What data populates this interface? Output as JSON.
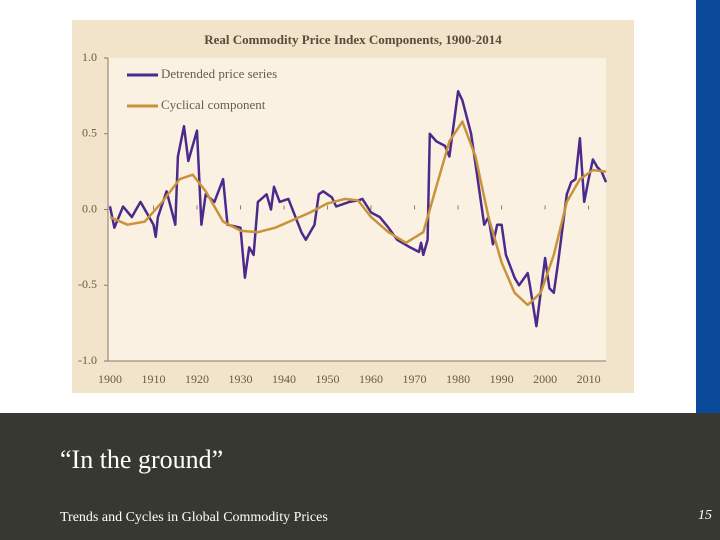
{
  "slide": {
    "heading": "“In the ground”",
    "footer": "Trends and Cycles in Global Commodity Prices",
    "page_number": "15"
  },
  "chart_data": {
    "type": "line",
    "title": "Real Commodity Price Index Components, 1900-2014",
    "xlim": [
      1900,
      2014
    ],
    "xticks": [
      1900,
      1910,
      1920,
      1930,
      1940,
      1950,
      1960,
      1970,
      1980,
      1990,
      2000,
      2010
    ],
    "ylim": [
      -1,
      1
    ],
    "yticks": [
      {
        "value": -1,
        "label": "-1.0"
      },
      {
        "value": -0.5,
        "label": "-0.5"
      },
      {
        "value": 0,
        "label": "0.0"
      },
      {
        "value": 0.5,
        "label": "0.5"
      },
      {
        "value": 1,
        "label": "1.0"
      }
    ],
    "legend": "upper left",
    "series": [
      {
        "name": "Detrended price series",
        "color": "#4b2a8c",
        "x": [
          1900,
          1901,
          1903,
          1905,
          1906,
          1907,
          1910,
          1910.5,
          1911,
          1913,
          1915,
          1915.6,
          1917,
          1918,
          1920,
          1921,
          1922,
          1924,
          1926,
          1927,
          1930,
          1931,
          1932,
          1933,
          1934,
          1936,
          1937,
          1937.7,
          1939,
          1941,
          1944,
          1945,
          1947,
          1948,
          1949,
          1951,
          1952,
          1955,
          1957,
          1958,
          1960,
          1962,
          1964,
          1966,
          1969,
          1971,
          1971.5,
          1972,
          1973,
          1973.5,
          1975,
          1977,
          1978,
          1980,
          1981,
          1983,
          1984,
          1986,
          1987,
          1988,
          1989,
          1990,
          1991,
          1993,
          1994,
          1996,
          1996.5,
          1998,
          2000,
          2001,
          2002,
          2003,
          2005,
          2006,
          2007,
          2008,
          2009,
          2010,
          2011,
          2012,
          2013,
          2014
        ],
        "values": [
          0.02,
          -0.12,
          0.02,
          -0.05,
          0.0,
          0.05,
          -0.1,
          -0.18,
          -0.05,
          0.12,
          -0.1,
          0.35,
          0.55,
          0.32,
          0.52,
          -0.1,
          0.1,
          0.05,
          0.2,
          -0.1,
          -0.12,
          -0.45,
          -0.25,
          -0.3,
          0.05,
          0.1,
          0.0,
          0.15,
          0.05,
          0.07,
          -0.15,
          -0.2,
          -0.1,
          0.1,
          0.12,
          0.08,
          0.02,
          0.05,
          0.06,
          0.07,
          -0.02,
          -0.05,
          -0.12,
          -0.2,
          -0.25,
          -0.28,
          -0.22,
          -0.3,
          -0.2,
          0.5,
          0.45,
          0.42,
          0.35,
          0.78,
          0.72,
          0.5,
          0.3,
          -0.1,
          -0.05,
          -0.23,
          -0.1,
          -0.1,
          -0.3,
          -0.45,
          -0.5,
          -0.42,
          -0.5,
          -0.77,
          -0.32,
          -0.52,
          -0.55,
          -0.35,
          0.1,
          0.18,
          0.2,
          0.47,
          0.05,
          0.2,
          0.33,
          0.28,
          0.25,
          0.18
        ]
      },
      {
        "name": "Cyclical component",
        "color": "#c8933a",
        "x": [
          1900,
          1904,
          1908,
          1912,
          1916,
          1919,
          1922,
          1926,
          1930,
          1934,
          1938,
          1942,
          1946,
          1950,
          1954,
          1957,
          1960,
          1964,
          1968,
          1972,
          1975,
          1978,
          1981,
          1984,
          1987,
          1990,
          1993,
          1996,
          1999,
          2002,
          2005,
          2008,
          2011,
          2014
        ],
        "values": [
          -0.05,
          -0.1,
          -0.08,
          0.05,
          0.2,
          0.23,
          0.12,
          -0.08,
          -0.14,
          -0.15,
          -0.12,
          -0.07,
          -0.02,
          0.04,
          0.07,
          0.06,
          -0.05,
          -0.15,
          -0.22,
          -0.15,
          0.15,
          0.45,
          0.58,
          0.35,
          -0.05,
          -0.35,
          -0.55,
          -0.63,
          -0.55,
          -0.3,
          0.05,
          0.2,
          0.26,
          0.25
        ]
      }
    ]
  }
}
